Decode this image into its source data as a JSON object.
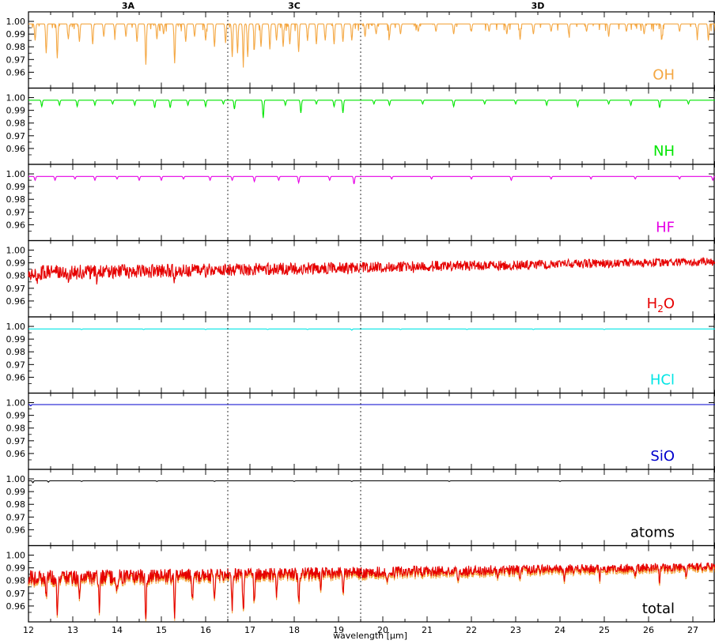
{
  "chart_data": {
    "type": "line",
    "xlabel": "wavelength [μm]",
    "xlim": [
      12,
      27.5
    ],
    "x_ticks": [
      12,
      13,
      14,
      15,
      16,
      17,
      18,
      19,
      20,
      21,
      22,
      23,
      24,
      25,
      26,
      27
    ],
    "ylim": [
      0.95,
      1.005
    ],
    "y_ticks": [
      0.96,
      0.97,
      0.98,
      0.99,
      1.0
    ],
    "y_tick_labels": [
      "0.96",
      "0.97",
      "0.98",
      "0.99",
      "1.00"
    ],
    "regions": [
      {
        "label": "3A",
        "x_start": 12,
        "x_end": 16.5
      },
      {
        "label": "3C",
        "x_start": 16.5,
        "x_end": 19.5
      },
      {
        "label": "3D",
        "x_start": 19.5,
        "x_end": 27.5
      }
    ],
    "dividers_x": [
      16.5,
      19.5
    ],
    "panels": [
      {
        "label": "OH",
        "label_main": "OH",
        "label_sub": "",
        "label_tail": "",
        "color": "#f4a742",
        "continuum": 0.998,
        "lines": [
          [
            12.15,
            0.985
          ],
          [
            12.4,
            0.975
          ],
          [
            12.65,
            0.971
          ],
          [
            12.9,
            0.986
          ],
          [
            13.15,
            0.984
          ],
          [
            13.45,
            0.982
          ],
          [
            13.7,
            0.988
          ],
          [
            13.95,
            0.99
          ],
          [
            14.2,
            0.988
          ],
          [
            14.45,
            0.984
          ],
          [
            14.65,
            0.966
          ],
          [
            14.9,
            0.986
          ],
          [
            15.05,
            0.99
          ],
          [
            15.3,
            0.967
          ],
          [
            15.55,
            0.984
          ],
          [
            15.75,
            0.988
          ],
          [
            16.0,
            0.985
          ],
          [
            16.2,
            0.98
          ],
          [
            16.45,
            0.983
          ],
          [
            16.6,
            0.972
          ],
          [
            16.72,
            0.975
          ],
          [
            16.85,
            0.968
          ],
          [
            16.95,
            0.972
          ],
          [
            17.1,
            0.978
          ],
          [
            17.25,
            0.98
          ],
          [
            17.45,
            0.978
          ],
          [
            17.6,
            0.985
          ],
          [
            17.75,
            0.98
          ],
          [
            17.9,
            0.982
          ],
          [
            18.1,
            0.976
          ],
          [
            18.3,
            0.985
          ],
          [
            18.5,
            0.982
          ],
          [
            18.7,
            0.985
          ],
          [
            18.9,
            0.982
          ],
          [
            19.1,
            0.984
          ],
          [
            19.3,
            0.985
          ],
          [
            19.6,
            0.988
          ],
          [
            19.85,
            0.99
          ],
          [
            20.15,
            0.988
          ],
          [
            20.4,
            0.99
          ],
          [
            20.8,
            0.992
          ],
          [
            21.2,
            0.992
          ],
          [
            21.6,
            0.99
          ],
          [
            22.0,
            0.992
          ],
          [
            22.4,
            0.992
          ],
          [
            22.8,
            0.99
          ],
          [
            23.1,
            0.986
          ],
          [
            23.4,
            0.99
          ],
          [
            23.8,
            0.992
          ],
          [
            24.2,
            0.99
          ],
          [
            24.6,
            0.992
          ],
          [
            25.1,
            0.988
          ],
          [
            25.5,
            0.992
          ],
          [
            25.9,
            0.99
          ],
          [
            26.3,
            0.986
          ],
          [
            26.7,
            0.992
          ],
          [
            27.1,
            0.988
          ],
          [
            27.35,
            0.985
          ]
        ]
      },
      {
        "label": "NH",
        "label_main": "NH",
        "label_sub": "",
        "label_tail": "",
        "color": "#00e600",
        "continuum": 0.998,
        "lines": [
          [
            12.3,
            0.993
          ],
          [
            12.7,
            0.994
          ],
          [
            13.1,
            0.993
          ],
          [
            13.5,
            0.994
          ],
          [
            13.9,
            0.995
          ],
          [
            14.4,
            0.994
          ],
          [
            14.85,
            0.992
          ],
          [
            15.2,
            0.992
          ],
          [
            15.6,
            0.994
          ],
          [
            16.0,
            0.993
          ],
          [
            16.4,
            0.995
          ],
          [
            16.65,
            0.991
          ],
          [
            17.3,
            0.984
          ],
          [
            17.8,
            0.994
          ],
          [
            18.15,
            0.988
          ],
          [
            18.5,
            0.995
          ],
          [
            18.9,
            0.993
          ],
          [
            19.1,
            0.988
          ],
          [
            19.8,
            0.995
          ],
          [
            20.15,
            0.994
          ],
          [
            20.9,
            0.995
          ],
          [
            21.6,
            0.993
          ],
          [
            22.3,
            0.995
          ],
          [
            23.0,
            0.995
          ],
          [
            23.7,
            0.994
          ],
          [
            24.4,
            0.993
          ],
          [
            25.1,
            0.995
          ],
          [
            25.6,
            0.994
          ],
          [
            26.25,
            0.992
          ],
          [
            26.9,
            0.995
          ]
        ]
      },
      {
        "label": "HF",
        "label_main": "HF",
        "label_sub": "",
        "label_tail": "",
        "color": "#e600e6",
        "continuum": 0.998,
        "lines": [
          [
            12.15,
            0.995
          ],
          [
            12.6,
            0.995
          ],
          [
            13.05,
            0.996
          ],
          [
            13.5,
            0.995
          ],
          [
            14.0,
            0.996
          ],
          [
            14.5,
            0.995
          ],
          [
            15.0,
            0.995
          ],
          [
            15.5,
            0.996
          ],
          [
            16.1,
            0.995
          ],
          [
            16.6,
            0.995
          ],
          [
            17.1,
            0.994
          ],
          [
            17.65,
            0.995
          ],
          [
            18.1,
            0.993
          ],
          [
            18.8,
            0.995
          ],
          [
            19.35,
            0.992
          ],
          [
            20.2,
            0.996
          ],
          [
            21.1,
            0.996
          ],
          [
            22.0,
            0.996
          ],
          [
            22.9,
            0.995
          ],
          [
            23.8,
            0.996
          ],
          [
            24.7,
            0.996
          ],
          [
            25.7,
            0.996
          ],
          [
            26.7,
            0.996
          ],
          [
            27.45,
            0.995
          ]
        ]
      },
      {
        "label": "H2O",
        "label_main": "H",
        "label_sub": "2",
        "label_tail": "O",
        "color": "#e60000",
        "continuum": 0.988,
        "lines": [
          [
            12.2,
            0.982
          ],
          [
            12.9,
            0.983
          ],
          [
            13.55,
            0.982
          ],
          [
            14.3,
            0.984
          ],
          [
            15.3,
            0.981
          ],
          [
            16.0,
            0.984
          ],
          [
            16.8,
            0.985
          ],
          [
            17.5,
            0.985
          ],
          [
            18.4,
            0.986
          ],
          [
            19.2,
            0.987
          ],
          [
            20.7,
            0.987
          ],
          [
            21.9,
            0.989
          ],
          [
            23.5,
            0.988
          ],
          [
            24.6,
            0.989
          ],
          [
            25.7,
            0.989
          ],
          [
            26.9,
            0.99
          ]
        ]
      },
      {
        "label": "HCl",
        "label_main": "HCl",
        "label_sub": "",
        "label_tail": "",
        "color": "#00e5e5",
        "continuum": 0.998,
        "lines": [
          [
            13.2,
            0.9975
          ],
          [
            14.6,
            0.9975
          ],
          [
            16.0,
            0.9975
          ],
          [
            17.4,
            0.9975
          ],
          [
            18.3,
            0.9975
          ],
          [
            19.3,
            0.997
          ],
          [
            20.4,
            0.9975
          ],
          [
            21.9,
            0.9975
          ],
          [
            23.4,
            0.9975
          ],
          [
            25.0,
            0.9975
          ]
        ]
      },
      {
        "label": "SiO",
        "label_main": "SiO",
        "label_sub": "",
        "label_tail": "",
        "color": "#0000cc",
        "continuum": 0.9985,
        "lines": [
          [
            12.05,
            0.9975
          ]
        ]
      },
      {
        "label": "atoms",
        "label_main": "atoms",
        "label_sub": "",
        "label_tail": "",
        "color": "#000000",
        "continuum": 0.9985,
        "lines": [
          [
            12.1,
            0.997
          ],
          [
            12.45,
            0.9975
          ],
          [
            13.2,
            0.998
          ],
          [
            14.9,
            0.998
          ],
          [
            16.2,
            0.998
          ],
          [
            18.0,
            0.998
          ],
          [
            19.3,
            0.998
          ],
          [
            21.5,
            0.998
          ],
          [
            24.0,
            0.998
          ]
        ]
      },
      {
        "label": "total",
        "label_main": "total",
        "label_sub": "",
        "label_tail": "",
        "color": "#e60000",
        "continuum": 0.988,
        "lines": [
          [
            12.4,
            0.972
          ],
          [
            12.65,
            0.958
          ],
          [
            13.15,
            0.972
          ],
          [
            13.6,
            0.962
          ],
          [
            14.0,
            0.975
          ],
          [
            14.65,
            0.956
          ],
          [
            15.3,
            0.958
          ],
          [
            15.7,
            0.968
          ],
          [
            16.2,
            0.97
          ],
          [
            16.6,
            0.962
          ],
          [
            16.85,
            0.956
          ],
          [
            17.1,
            0.966
          ],
          [
            17.6,
            0.968
          ],
          [
            18.1,
            0.964
          ],
          [
            18.6,
            0.975
          ],
          [
            19.1,
            0.972
          ],
          [
            20.1,
            0.98
          ],
          [
            20.9,
            0.984
          ],
          [
            21.7,
            0.982
          ],
          [
            22.6,
            0.982
          ],
          [
            23.1,
            0.978
          ],
          [
            24.1,
            0.98
          ],
          [
            24.9,
            0.98
          ],
          [
            25.7,
            0.982
          ],
          [
            26.25,
            0.976
          ],
          [
            26.85,
            0.982
          ]
        ]
      }
    ]
  }
}
